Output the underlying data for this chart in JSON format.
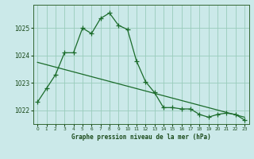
{
  "title": "Graphe pression niveau de la mer (hPa)",
  "bg_color": "#cbe9e9",
  "grid_color": "#99ccbb",
  "line_color": "#1a6b2a",
  "xlim": [
    -0.5,
    23.5
  ],
  "ylim": [
    1021.5,
    1025.85
  ],
  "yticks": [
    1022,
    1023,
    1024,
    1025
  ],
  "xticks": [
    0,
    1,
    2,
    3,
    4,
    5,
    6,
    7,
    8,
    9,
    10,
    11,
    12,
    13,
    14,
    15,
    16,
    17,
    18,
    19,
    20,
    21,
    22,
    23
  ],
  "series1_x": [
    0,
    1,
    2,
    3,
    4,
    5,
    6,
    7,
    8,
    9,
    10,
    11,
    12,
    13,
    14,
    15,
    16,
    17,
    18,
    19,
    20,
    21,
    22,
    23
  ],
  "series1_y": [
    1022.3,
    1022.8,
    1023.3,
    1024.1,
    1024.1,
    1025.0,
    1024.8,
    1025.35,
    1025.55,
    1025.1,
    1024.95,
    1023.8,
    1023.05,
    1022.65,
    1022.1,
    1022.1,
    1022.05,
    1022.05,
    1021.85,
    1021.75,
    1021.85,
    1021.9,
    1021.85,
    1021.65
  ],
  "series2_x": [
    0,
    23
  ],
  "series2_y": [
    1023.75,
    1021.75
  ],
  "marker": "+",
  "markersize": 4,
  "markeredgewidth": 0.9,
  "linewidth": 0.9,
  "title_fontsize": 5.5,
  "xtick_fontsize": 4.2,
  "ytick_fontsize": 5.5
}
